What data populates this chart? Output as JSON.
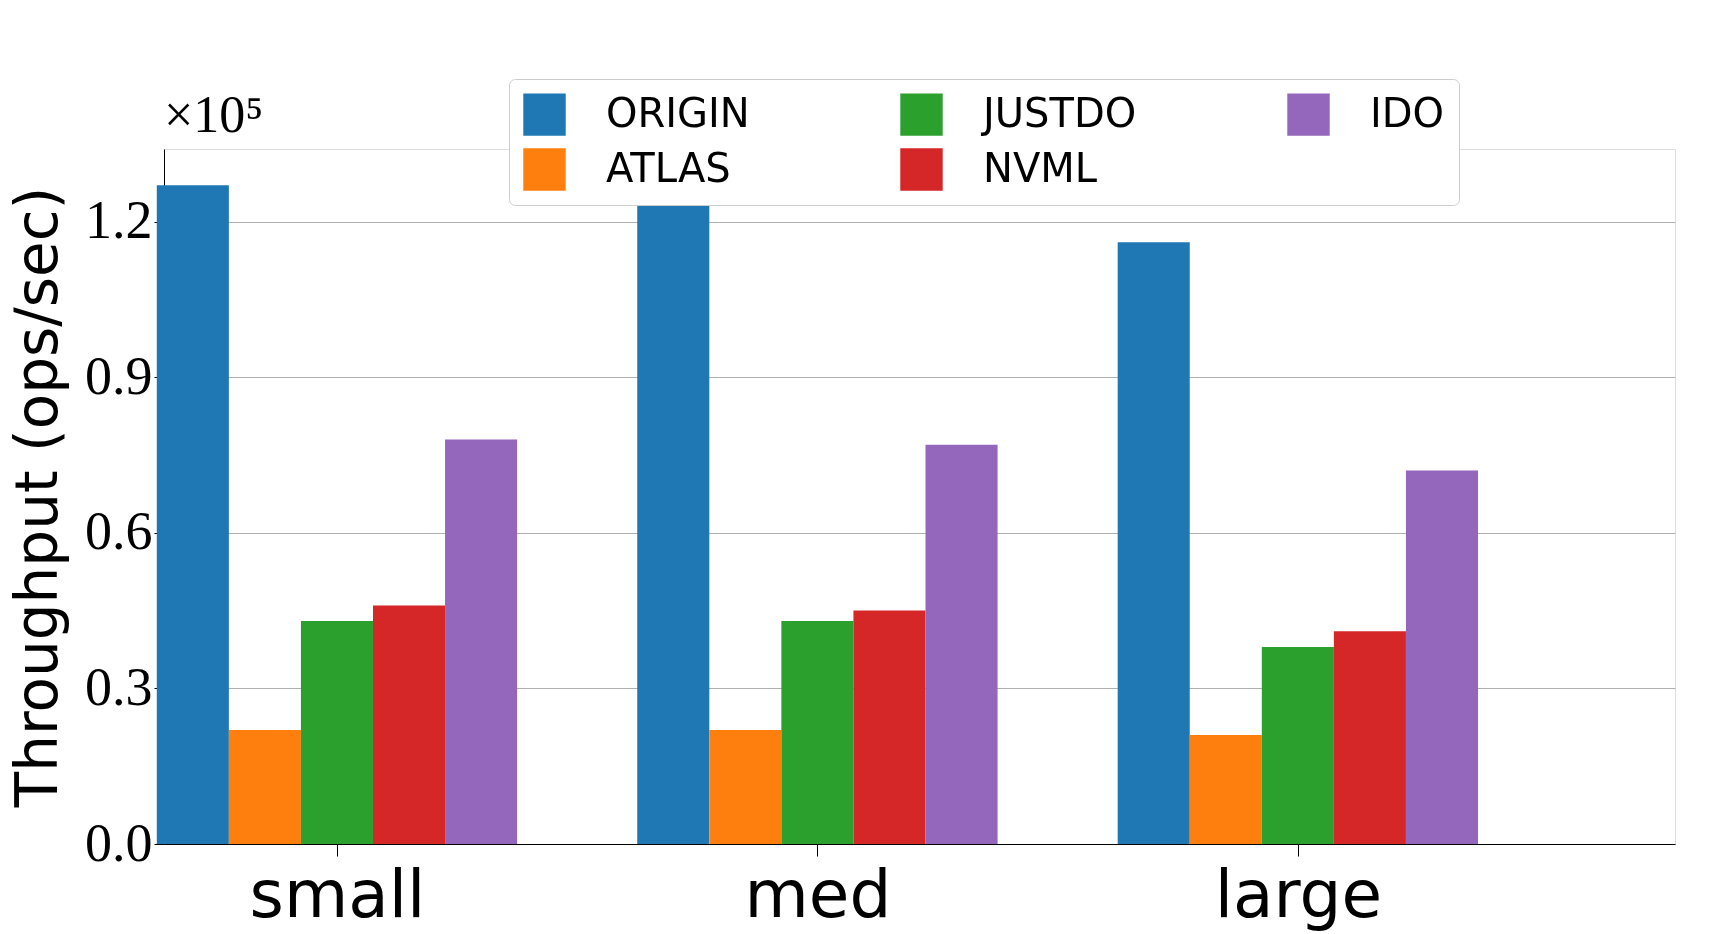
{
  "chart_data": {
    "type": "bar",
    "ylabel": "Throughput (ops/sec)",
    "categories": [
      "small",
      "med",
      "large"
    ],
    "series": [
      {
        "name": "ORIGIN",
        "color": "#1f77b4",
        "values": [
          1.27,
          1.23,
          1.16
        ]
      },
      {
        "name": "ATLAS",
        "color": "#ff7f0e",
        "values": [
          0.22,
          0.22,
          0.21
        ]
      },
      {
        "name": "JUSTDO",
        "color": "#2ca02c",
        "values": [
          0.43,
          0.43,
          0.38
        ]
      },
      {
        "name": "NVML",
        "color": "#d62728",
        "values": [
          0.46,
          0.45,
          0.41
        ]
      },
      {
        "name": "IDO",
        "color": "#9467bd",
        "values": [
          0.78,
          0.77,
          0.72
        ]
      }
    ],
    "ylim": [
      0,
      1.34
    ],
    "yticks": [
      {
        "value": 0,
        "label": "0.0"
      },
      {
        "value": 0.3,
        "label": "0.3"
      },
      {
        "value": 0.6,
        "label": "0.6"
      },
      {
        "value": 0.9,
        "label": "0.9"
      },
      {
        "value": 1.2,
        "label": "1.2"
      }
    ],
    "annotations": [
      "×10⁵"
    ],
    "grid": "y",
    "legend": "top right"
  }
}
